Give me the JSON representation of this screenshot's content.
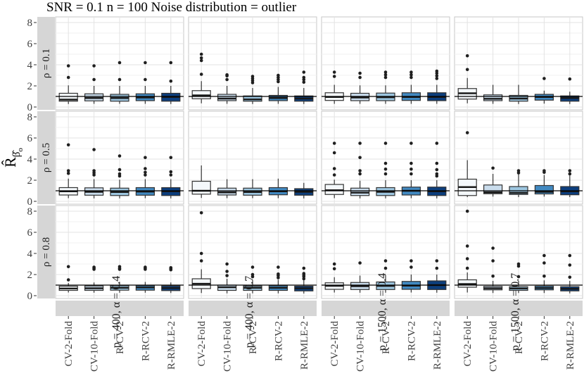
{
  "title": "SNR = 0.1 n = 100 Noise distribution = outlier",
  "y_axis": {
    "title_main": "R̂",
    "title_sub": "β̂",
    "title_subsub": "o",
    "ticks": [
      0,
      2,
      4,
      6,
      8
    ],
    "range": [
      0,
      8.5
    ]
  },
  "x_categories": [
    "CV-2-Fold",
    "CV-10-Fold",
    "R-CV-2",
    "R-RCV-2",
    "R-RMLE-2"
  ],
  "row_facets": [
    "ρ = 0.1",
    "ρ = 0.5",
    "ρ = 0.8"
  ],
  "col_facets": [
    "p = 400, α = 0.4",
    "p = 400, α = 0.7",
    "p = 1500, α = 0.4",
    "p = 1500, α = 0.7"
  ],
  "reference_line_y": 1,
  "colors": {
    "box_fills": [
      "#f4f8fb",
      "#cadded",
      "#9dc6e0",
      "#4189c1",
      "#0c3e7d"
    ],
    "box_stroke": "#333333",
    "median": "#1a1a1a",
    "outlier": "#1f1f1f",
    "strip_bg": "#d6d6d6",
    "strip_text": "#1a1a1a",
    "panel_border": "#c7c7c7",
    "grid_major": "#e3e3e3",
    "grid_minor": "#f0f0f0",
    "axis_text": "#404040",
    "tick_mark": "#333333",
    "reference_line": "#000000"
  },
  "chart_data": {
    "type": "boxplot-grid",
    "note": "boxes are [whisker_low, q1, median, q3, whisker_high] in y-units; one per x category",
    "panels": [
      {
        "row": 0,
        "col": 0,
        "boxes": [
          [
            0.28,
            0.55,
            0.7,
            1.3,
            2.05
          ],
          [
            0.3,
            0.58,
            0.85,
            1.25,
            2.0
          ],
          [
            0.3,
            0.55,
            0.85,
            1.2,
            2.0
          ],
          [
            0.3,
            0.6,
            0.9,
            1.25,
            2.0
          ],
          [
            0.28,
            0.55,
            0.95,
            1.3,
            2.0
          ]
        ],
        "outliers": [
          [
            2.8,
            3.9
          ],
          [
            2.6,
            3.9
          ],
          [
            2.6,
            4.2
          ],
          [
            2.6,
            4.2
          ],
          [
            2.45,
            4.2
          ]
        ]
      },
      {
        "row": 0,
        "col": 1,
        "boxes": [
          [
            0.35,
            0.78,
            1.1,
            1.55,
            2.45
          ],
          [
            0.3,
            0.6,
            0.8,
            1.2,
            2.0
          ],
          [
            0.28,
            0.55,
            0.72,
            1.05,
            1.8
          ],
          [
            0.3,
            0.6,
            0.85,
            1.1,
            1.9
          ],
          [
            0.28,
            0.55,
            0.8,
            1.05,
            1.8
          ]
        ],
        "outliers": [
          [
            3.1,
            4.4,
            4.65,
            5.0
          ],
          [
            2.6,
            2.95,
            3.05
          ],
          [
            2.3,
            2.5,
            2.7,
            2.9
          ],
          [
            2.4,
            2.6,
            2.8,
            3.0
          ],
          [
            2.35,
            2.6,
            2.8,
            3.3
          ]
        ]
      },
      {
        "row": 0,
        "col": 2,
        "boxes": [
          [
            0.3,
            0.62,
            0.95,
            1.35,
            2.1
          ],
          [
            0.3,
            0.6,
            0.9,
            1.3,
            2.05
          ],
          [
            0.3,
            0.6,
            0.92,
            1.32,
            2.05
          ],
          [
            0.3,
            0.62,
            0.95,
            1.35,
            2.1
          ],
          [
            0.3,
            0.6,
            0.95,
            1.35,
            2.1
          ]
        ],
        "outliers": [
          [
            2.9,
            3.3
          ],
          [
            2.8,
            3.2
          ],
          [
            2.8,
            3.05,
            3.3
          ],
          [
            2.8,
            3.05,
            3.3
          ],
          [
            2.7,
            2.95,
            3.2,
            3.4
          ]
        ]
      },
      {
        "row": 0,
        "col": 3,
        "boxes": [
          [
            0.35,
            0.75,
            1.3,
            1.75,
            2.75
          ],
          [
            0.3,
            0.6,
            0.78,
            1.15,
            2.1
          ],
          [
            0.28,
            0.55,
            0.8,
            1.1,
            2.1
          ],
          [
            0.32,
            0.65,
            0.95,
            1.2,
            1.55
          ],
          [
            0.28,
            0.55,
            0.85,
            1.05,
            1.45
          ]
        ],
        "outliers": [
          [
            3.55,
            4.85
          ],
          [],
          [],
          [
            2.7
          ],
          [
            2.65
          ]
        ]
      },
      {
        "row": 1,
        "col": 0,
        "boxes": [
          [
            0.3,
            0.6,
            0.95,
            1.3,
            2.15
          ],
          [
            0.28,
            0.58,
            0.9,
            1.28,
            2.1
          ],
          [
            0.28,
            0.55,
            0.88,
            1.25,
            2.05
          ],
          [
            0.3,
            0.58,
            0.92,
            1.3,
            2.1
          ],
          [
            0.28,
            0.55,
            0.95,
            1.3,
            2.1
          ]
        ],
        "outliers": [
          [
            2.65,
            2.9,
            5.35
          ],
          [
            2.5,
            2.7,
            2.9,
            4.9
          ],
          [
            2.4,
            2.6,
            3.0,
            4.3
          ],
          [
            2.5,
            2.75,
            3.1,
            4.15
          ],
          [
            2.5,
            2.8,
            4.15
          ]
        ]
      },
      {
        "row": 1,
        "col": 1,
        "boxes": [
          [
            0.32,
            0.68,
            1.0,
            1.9,
            3.4
          ],
          [
            0.3,
            0.6,
            0.85,
            1.25,
            2.1
          ],
          [
            0.3,
            0.58,
            0.88,
            1.25,
            2.1
          ],
          [
            0.3,
            0.62,
            0.95,
            1.3,
            2.15
          ],
          [
            0.28,
            0.58,
            0.9,
            1.2,
            1.75
          ]
        ],
        "outliers": [
          [],
          [],
          [],
          [],
          []
        ]
      },
      {
        "row": 1,
        "col": 2,
        "boxes": [
          [
            0.3,
            0.65,
            1.05,
            1.6,
            2.05
          ],
          [
            0.28,
            0.55,
            0.82,
            1.25,
            1.95
          ],
          [
            0.28,
            0.55,
            0.9,
            1.3,
            2.0
          ],
          [
            0.3,
            0.6,
            1.0,
            1.35,
            2.0
          ],
          [
            0.28,
            0.55,
            0.95,
            1.35,
            2.0
          ]
        ],
        "outliers": [
          [
            2.5,
            3.1,
            4.6,
            5.5
          ],
          [
            2.6,
            2.9,
            4.15,
            5.5
          ],
          [
            2.6,
            3.05,
            3.6,
            5.5
          ],
          [
            2.6,
            3.05,
            3.6,
            5.5
          ],
          [
            2.4,
            2.6,
            3.0,
            3.6,
            5.5
          ]
        ]
      },
      {
        "row": 1,
        "col": 3,
        "boxes": [
          [
            0.4,
            0.55,
            1.35,
            2.1,
            3.9
          ],
          [
            0.45,
            0.72,
            0.85,
            1.55,
            2.6
          ],
          [
            0.4,
            0.65,
            0.8,
            1.4,
            2.6
          ],
          [
            0.45,
            0.7,
            0.9,
            1.5,
            2.5
          ],
          [
            0.4,
            0.62,
            0.95,
            1.4,
            2.45
          ]
        ],
        "outliers": [
          [
            6.5
          ],
          [
            3.15
          ],
          [
            2.7,
            2.9
          ],
          [
            2.75,
            2.9
          ],
          [
            2.6,
            2.9
          ]
        ]
      },
      {
        "row": 2,
        "col": 0,
        "boxes": [
          [
            0.3,
            0.5,
            0.68,
            0.9,
            1.2
          ],
          [
            0.28,
            0.5,
            0.7,
            0.92,
            1.25
          ],
          [
            0.28,
            0.52,
            0.75,
            0.95,
            1.3
          ],
          [
            0.28,
            0.52,
            0.78,
            0.95,
            1.3
          ],
          [
            0.25,
            0.48,
            0.72,
            0.92,
            1.25
          ]
        ],
        "outliers": [
          [
            1.5,
            2.75
          ],
          [
            2.5,
            2.6,
            2.7
          ],
          [
            2.5,
            2.6,
            2.75
          ],
          [
            2.5,
            2.6,
            2.7
          ],
          [
            2.45,
            2.55,
            2.65
          ]
        ]
      },
      {
        "row": 2,
        "col": 1,
        "boxes": [
          [
            0.25,
            0.67,
            1.13,
            1.6,
            2.5
          ],
          [
            0.22,
            0.5,
            0.8,
            1.0,
            1.6
          ],
          [
            0.22,
            0.5,
            0.75,
            0.92,
            1.5
          ],
          [
            0.22,
            0.5,
            0.75,
            0.95,
            1.5
          ],
          [
            0.2,
            0.45,
            0.7,
            0.9,
            1.45
          ]
        ],
        "outliers": [
          [
            3.3,
            4.0,
            7.85
          ],
          [
            1.9,
            2.3,
            3.0
          ],
          [
            1.8,
            2.0,
            2.7
          ],
          [
            1.7,
            1.9,
            2.05,
            2.7
          ],
          [
            1.6,
            1.8,
            1.95,
            2.1,
            2.6
          ]
        ]
      },
      {
        "row": 2,
        "col": 2,
        "boxes": [
          [
            0.3,
            0.6,
            0.93,
            1.22,
            1.75
          ],
          [
            0.28,
            0.58,
            0.9,
            1.25,
            1.9
          ],
          [
            0.28,
            0.58,
            0.92,
            1.3,
            1.95
          ],
          [
            0.3,
            0.6,
            0.95,
            1.35,
            2.0
          ],
          [
            0.28,
            0.58,
            1.0,
            1.4,
            2.0
          ]
        ],
        "outliers": [
          [
            2.55,
            3.0
          ],
          [
            3.1
          ],
          [
            2.6,
            3.3
          ],
          [
            2.7,
            3.3
          ],
          [
            2.6,
            3.3
          ]
        ]
      },
      {
        "row": 2,
        "col": 3,
        "boxes": [
          [
            0.3,
            0.8,
            1.1,
            1.5,
            2.2
          ],
          [
            0.25,
            0.55,
            0.7,
            0.88,
            1.4
          ],
          [
            0.25,
            0.5,
            0.68,
            0.85,
            1.4
          ],
          [
            0.25,
            0.55,
            0.72,
            0.9,
            1.45
          ],
          [
            0.22,
            0.45,
            0.65,
            0.85,
            1.4
          ]
        ],
        "outliers": [
          [
            2.6,
            3.5,
            4.7,
            8.0
          ],
          [
            1.85,
            3.3,
            4.5
          ],
          [
            1.8,
            2.8,
            3.0
          ],
          [
            1.85,
            3.1,
            3.8
          ],
          [
            1.75,
            2.9,
            3.8
          ]
        ]
      }
    ]
  }
}
